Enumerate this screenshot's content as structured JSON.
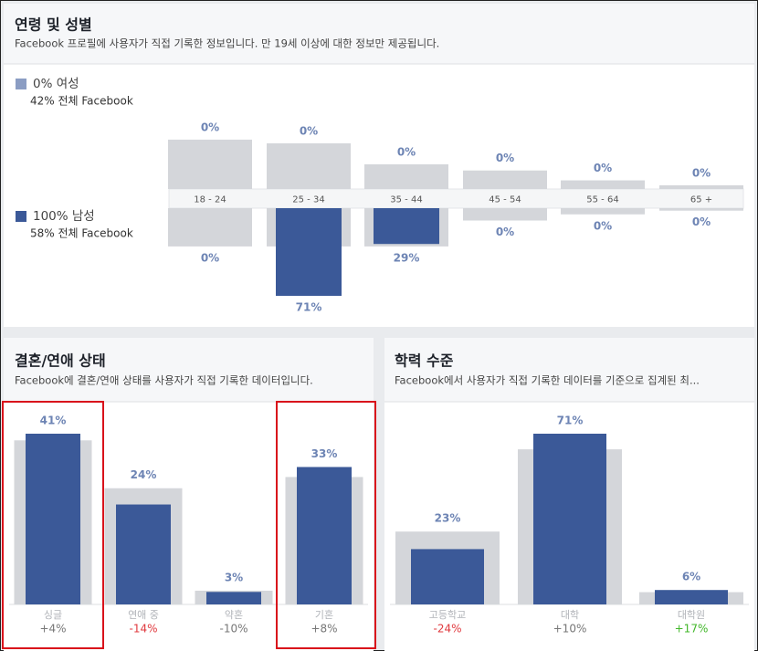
{
  "chart_data": [
    {
      "type": "pyramid",
      "title": "연령 및 성별",
      "subtitle": "Facebook 프로필에 사용자가 직접 기록한 정보입니다. 만 19세 이상에 대한 정보만 제공됩니다.",
      "categories": [
        "18 - 24",
        "25 - 34",
        "35 - 44",
        "45 - 54",
        "55 - 64",
        "65 +"
      ],
      "benchmark_color": "#d4d6da",
      "series": [
        {
          "name": "0% 여성",
          "benchmark_label": "42% 전체 Facebook",
          "color": "#8b9dc3",
          "values": [
            0,
            0,
            0,
            0,
            0,
            0
          ],
          "value_labels": [
            "0%",
            "0%",
            "0%",
            "0%",
            "0%",
            "0%"
          ],
          "benchmark": [
            40,
            37,
            20,
            15,
            7,
            3
          ]
        },
        {
          "name": "100% 남성",
          "benchmark_label": "58% 전체 Facebook",
          "color": "#3b5998",
          "values": [
            0,
            71,
            29,
            0,
            0,
            0
          ],
          "value_labels": [
            "0%",
            "71%",
            "29%",
            "0%",
            "0%",
            "0%"
          ],
          "benchmark": [
            31,
            31,
            31,
            10,
            5,
            2
          ]
        }
      ]
    },
    {
      "type": "bar",
      "title": "결혼/연애 상태",
      "subtitle": "Facebook에 결혼/연애 상태를 사용자가 직접 기록한 데이터입니다.",
      "categories": [
        "싱글",
        "연애 중",
        "약혼",
        "기혼"
      ],
      "color": "#3b5998",
      "benchmark_color": "#d4d6da",
      "values": [
        41,
        24,
        3,
        33
      ],
      "value_labels": [
        "41%",
        "24%",
        "3%",
        "33%"
      ],
      "benchmark": [
        39.4,
        27.9,
        3.3,
        30.6
      ],
      "changes": [
        {
          "value": 4,
          "label": "+4%"
        },
        {
          "value": -14,
          "label": "-14%"
        },
        {
          "value": -10,
          "label": "-10%"
        },
        {
          "value": 8,
          "label": "+8%"
        }
      ],
      "change_colors": [
        "#777777",
        "#e0393e",
        "#777777",
        "#777777"
      ]
    },
    {
      "type": "bar",
      "title": "학력 수준",
      "subtitle": "Facebook에서 사용자가 직접 기록한 데이터를 기준으로 집계된 최...",
      "categories": [
        "고등학교",
        "대학",
        "대학원"
      ],
      "color": "#3b5998",
      "benchmark_color": "#d4d6da",
      "values": [
        23,
        71,
        6
      ],
      "value_labels": [
        "23%",
        "71%",
        "6%"
      ],
      "benchmark": [
        30.3,
        64.5,
        5.1
      ],
      "changes": [
        {
          "value": -24,
          "label": "-24%"
        },
        {
          "value": 10,
          "label": "+10%"
        },
        {
          "value": 17,
          "label": "+17%"
        }
      ],
      "change_colors": [
        "#e0393e",
        "#777777",
        "#42b72a"
      ]
    }
  ]
}
